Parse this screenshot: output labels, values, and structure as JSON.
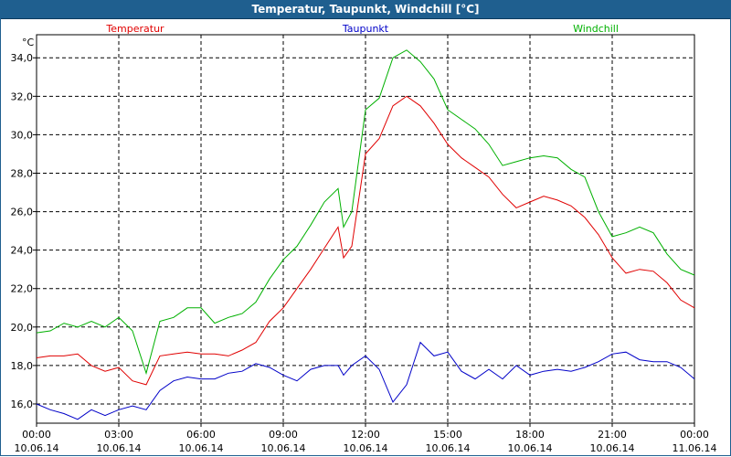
{
  "window": {
    "title": "Temperatur, Taupunkt, Windchill [°C]"
  },
  "chart_data": {
    "type": "line",
    "title": "Temperatur, Taupunkt, Windchill [°C]",
    "ylabel": "°C",
    "ylim": [
      15.0,
      35.2
    ],
    "yticks": [
      "16,0",
      "18,0",
      "20,0",
      "22,0",
      "24,0",
      "26,0",
      "28,0",
      "30,0",
      "32,0",
      "34,0"
    ],
    "xlim": [
      0,
      24
    ],
    "xticks": [
      {
        "time": "00:00",
        "date": "10.06.14"
      },
      {
        "time": "03:00",
        "date": "10.06.14"
      },
      {
        "time": "06:00",
        "date": "10.06.14"
      },
      {
        "time": "09:00",
        "date": "10.06.14"
      },
      {
        "time": "12:00",
        "date": "10.06.14"
      },
      {
        "time": "15:00",
        "date": "10.06.14"
      },
      {
        "time": "18:00",
        "date": "10.06.14"
      },
      {
        "time": "21:00",
        "date": "10.06.14"
      },
      {
        "time": "00:00",
        "date": "11.06.14"
      }
    ],
    "grid": true,
    "legend": "top",
    "series": [
      {
        "name": "Temperatur",
        "color": "#e00000",
        "x": [
          0,
          0.5,
          1,
          1.5,
          2,
          2.5,
          3,
          3.5,
          4,
          4.5,
          5,
          5.5,
          6,
          6.5,
          7,
          7.5,
          8,
          8.5,
          9,
          9.5,
          10,
          10.5,
          11,
          11.2,
          11.5,
          12,
          12.5,
          13,
          13.5,
          14,
          14.5,
          15,
          15.5,
          16,
          16.5,
          17,
          17.5,
          18,
          18.5,
          19,
          19.5,
          20,
          20.5,
          21,
          21.5,
          22,
          22.5,
          23,
          23.5,
          24
        ],
        "y": [
          18.4,
          18.5,
          18.5,
          18.6,
          18.0,
          17.7,
          17.9,
          17.2,
          17.0,
          18.5,
          18.6,
          18.7,
          18.6,
          18.6,
          18.5,
          18.8,
          19.2,
          20.3,
          21.0,
          22.0,
          23.0,
          24.1,
          25.2,
          23.6,
          24.2,
          29.0,
          29.8,
          31.5,
          32.0,
          31.5,
          30.6,
          29.5,
          28.8,
          28.3,
          27.8,
          26.9,
          26.2,
          26.5,
          26.8,
          26.6,
          26.3,
          25.7,
          24.8,
          23.6,
          22.8,
          23.0,
          22.9,
          22.3,
          21.4,
          21.0
        ]
      },
      {
        "name": "Taupunkt",
        "color": "#0000c8",
        "x": [
          0,
          0.5,
          1,
          1.5,
          2,
          2.5,
          3,
          3.5,
          4,
          4.5,
          5,
          5.5,
          6,
          6.5,
          7,
          7.5,
          8,
          8.5,
          9,
          9.5,
          10,
          10.5,
          11,
          11.2,
          11.5,
          12,
          12.5,
          13,
          13.5,
          14,
          14.5,
          15,
          15.5,
          16,
          16.5,
          17,
          17.5,
          18,
          18.5,
          19,
          19.5,
          20,
          20.5,
          21,
          21.5,
          22,
          22.5,
          23,
          23.5,
          24
        ],
        "y": [
          16.0,
          15.7,
          15.5,
          15.2,
          15.7,
          15.4,
          15.7,
          15.9,
          15.7,
          16.7,
          17.2,
          17.4,
          17.3,
          17.3,
          17.6,
          17.7,
          18.1,
          17.9,
          17.5,
          17.2,
          17.8,
          18.0,
          18.0,
          17.5,
          18.0,
          18.5,
          17.8,
          16.1,
          17.0,
          19.2,
          18.5,
          18.7,
          17.7,
          17.3,
          17.8,
          17.3,
          18.0,
          17.5,
          17.7,
          17.8,
          17.7,
          17.9,
          18.2,
          18.6,
          18.7,
          18.3,
          18.2,
          18.2,
          17.9,
          17.3
        ]
      },
      {
        "name": "Windchill",
        "color": "#00b000",
        "x": [
          0,
          0.5,
          1,
          1.5,
          2,
          2.5,
          3,
          3.5,
          4,
          4.5,
          5,
          5.5,
          6,
          6.5,
          7,
          7.5,
          8,
          8.5,
          9,
          9.5,
          10,
          10.5,
          11,
          11.2,
          11.5,
          12,
          12.5,
          13,
          13.5,
          14,
          14.5,
          15,
          15.5,
          16,
          16.5,
          17,
          17.5,
          18,
          18.5,
          19,
          19.5,
          20,
          20.5,
          21,
          21.5,
          22,
          22.5,
          23,
          23.5,
          24
        ],
        "y": [
          19.7,
          19.8,
          20.2,
          20.0,
          20.3,
          20.0,
          20.5,
          19.8,
          17.6,
          20.3,
          20.5,
          21.0,
          21.0,
          20.2,
          20.5,
          20.7,
          21.3,
          22.5,
          23.5,
          24.2,
          25.3,
          26.5,
          27.2,
          25.2,
          26.0,
          31.3,
          31.9,
          34.0,
          34.4,
          33.8,
          32.9,
          31.3,
          30.8,
          30.3,
          29.5,
          28.4,
          28.6,
          28.8,
          28.9,
          28.8,
          28.2,
          27.8,
          26.0,
          24.7,
          24.9,
          25.2,
          24.9,
          23.8,
          23.0,
          22.7
        ]
      }
    ]
  }
}
